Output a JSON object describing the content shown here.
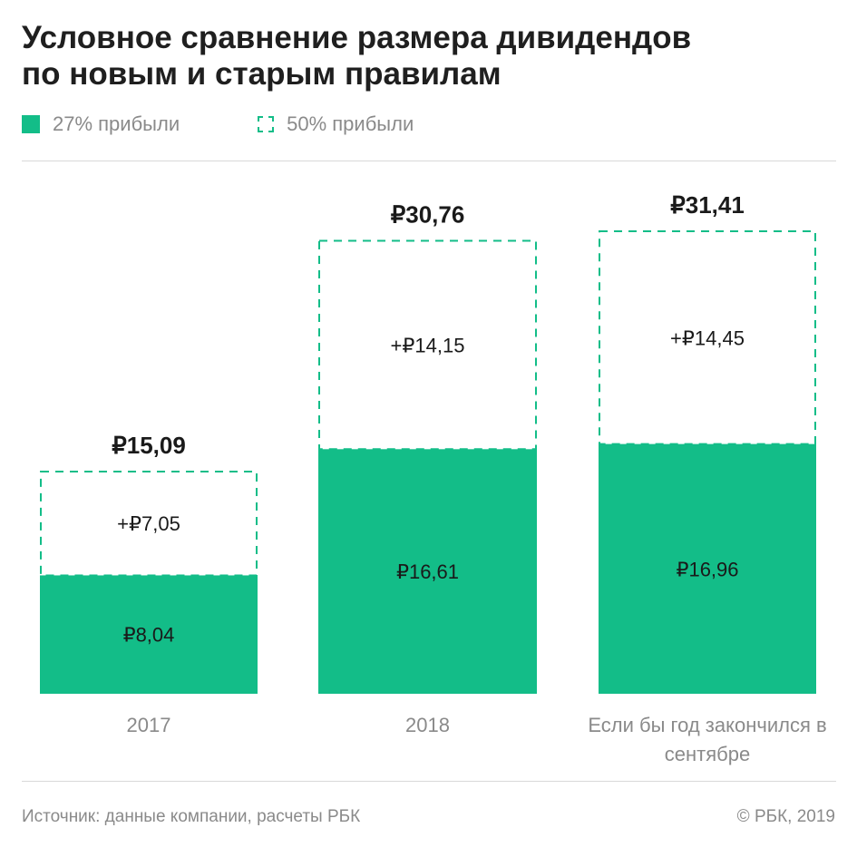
{
  "header": {
    "title_line1": "Условное сравнение размера дивидендов",
    "title_line2": "по новым и старым правилам"
  },
  "legend": {
    "solid_label": "27% прибыли",
    "dashed_label": "50% прибыли"
  },
  "colors": {
    "accent": "#13bd88",
    "text": "#1a1a1a",
    "muted": "#8a8a8a"
  },
  "chart_data": {
    "type": "bar",
    "stacked": true,
    "categories": [
      "2017",
      "2018",
      "Если бы год закончился в сентябре"
    ],
    "series": [
      {
        "name": "27% прибыли",
        "values": [
          8.04,
          16.61,
          16.96
        ],
        "labels": [
          "₽8,04",
          "₽16,61",
          "₽16,96"
        ]
      },
      {
        "name": "50% прибыли",
        "values": [
          7.05,
          14.15,
          14.45
        ],
        "labels": [
          "+₽7,05",
          "+₽14,15",
          "+₽14,45"
        ]
      }
    ],
    "totals": [
      15.09,
      30.76,
      31.41
    ],
    "total_labels": [
      "₽15,09",
      "₽30,76",
      "₽31,41"
    ],
    "ylim": [
      0,
      31.41
    ]
  },
  "footer": {
    "source": "Источник: данные компании, расчеты РБК",
    "copyright": "© РБК, 2019"
  }
}
